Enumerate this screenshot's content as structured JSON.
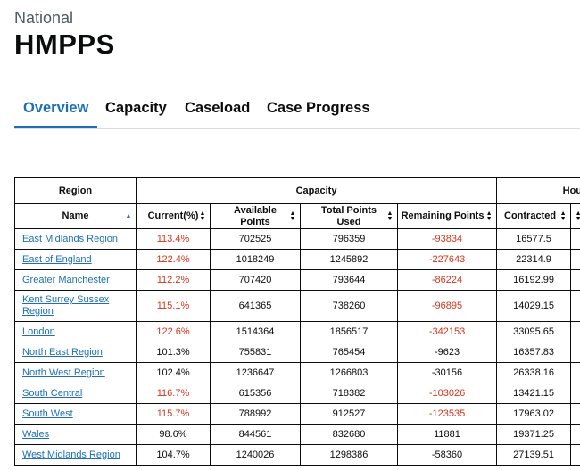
{
  "header": {
    "caption": "National",
    "title": "HMPPS"
  },
  "tabs": [
    {
      "label": "Overview",
      "active": true
    },
    {
      "label": "Capacity",
      "active": false
    },
    {
      "label": "Caseload",
      "active": false
    },
    {
      "label": "Case Progress",
      "active": false
    }
  ],
  "table": {
    "group_headers": {
      "region": "Region",
      "capacity": "Capacity",
      "hours": "Hours"
    },
    "columns": {
      "name": "Name",
      "current": "Current(%)",
      "available": "Available Points",
      "used": "Total Points Used",
      "remaining": "Remaining Points",
      "contracted": "Contracted"
    },
    "rows": [
      {
        "name": "East Midlands Region",
        "current": "113.4%",
        "available": "702525",
        "used": "796359",
        "remaining": "-93834",
        "contracted": "16577.5"
      },
      {
        "name": "East of England",
        "current": "122.4%",
        "available": "1018249",
        "used": "1245892",
        "remaining": "-227643",
        "contracted": "22314.9"
      },
      {
        "name": "Greater Manchester",
        "current": "112.2%",
        "available": "707420",
        "used": "793644",
        "remaining": "-86224",
        "contracted": "16192.99"
      },
      {
        "name": "Kent Surrey Sussex Region",
        "current": "115.1%",
        "available": "641365",
        "used": "738260",
        "remaining": "-96895",
        "contracted": "14029.15"
      },
      {
        "name": "London",
        "current": "122.6%",
        "available": "1514364",
        "used": "1856517",
        "remaining": "-342153",
        "contracted": "33095.65"
      },
      {
        "name": "North East Region",
        "current": "101.3%",
        "available": "755831",
        "used": "765454",
        "remaining": "-9623",
        "contracted": "16357.83"
      },
      {
        "name": "North West Region",
        "current": "102.4%",
        "available": "1236647",
        "used": "1266803",
        "remaining": "-30156",
        "contracted": "26338.16"
      },
      {
        "name": "South Central",
        "current": "116.7%",
        "available": "615356",
        "used": "718382",
        "remaining": "-103026",
        "contracted": "13421.15"
      },
      {
        "name": "South West",
        "current": "115.7%",
        "available": "788992",
        "used": "912527",
        "remaining": "-123535",
        "contracted": "17963.02"
      },
      {
        "name": "Wales",
        "current": "98.6%",
        "available": "844561",
        "used": "832680",
        "remaining": "11881",
        "contracted": "19371.25"
      },
      {
        "name": "West Midlands Region",
        "current": "104.7%",
        "available": "1240026",
        "used": "1298386",
        "remaining": "-58360",
        "contracted": "27139.51"
      }
    ],
    "highlight_color": "#d4351c",
    "link_color": "#1d70b8"
  }
}
